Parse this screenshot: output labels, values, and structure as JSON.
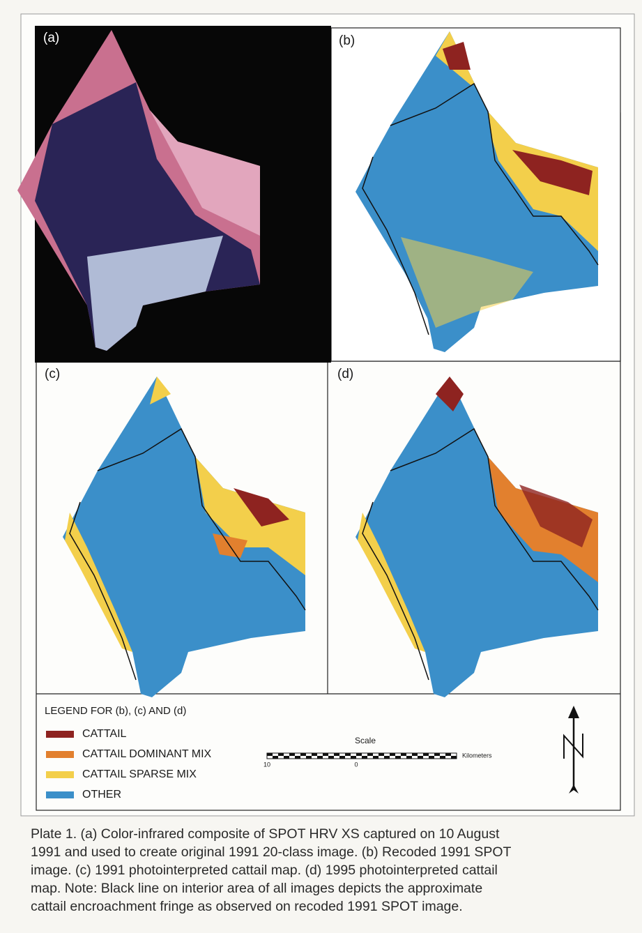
{
  "panels": [
    {
      "label": "(a)"
    },
    {
      "label": "(b)"
    },
    {
      "label": "(c)"
    },
    {
      "label": "(d)"
    }
  ],
  "legend": {
    "title": "LEGEND FOR (b), (c) AND (d)",
    "items": [
      {
        "label": "CATTAIL",
        "color": "#8e2320"
      },
      {
        "label": "CATTAIL DOMINANT MIX",
        "color": "#e2802e"
      },
      {
        "label": "CATTAIL SPARSE MIX",
        "color": "#f3cf4b"
      },
      {
        "label": "OTHER",
        "color": "#3b8fc9"
      }
    ]
  },
  "scale": {
    "title": "Scale",
    "unit": "Kilometers",
    "ticks": [
      "10",
      "0"
    ]
  },
  "caption": [
    "Plate 1. (a) Color-infrared composite of SPOT HRV XS captured on 10 August",
    "1991 and used to create original 1991 20-class image. (b) Recoded 1991 SPOT",
    "image. (c) 1991 photointerpreted cattail map. (d) 1995 photointerpreted cattail",
    "map. Note: Black line on interior area of all images depicts the approximate",
    "cattail encroachment fringe as observed on recoded 1991 SPOT image."
  ]
}
